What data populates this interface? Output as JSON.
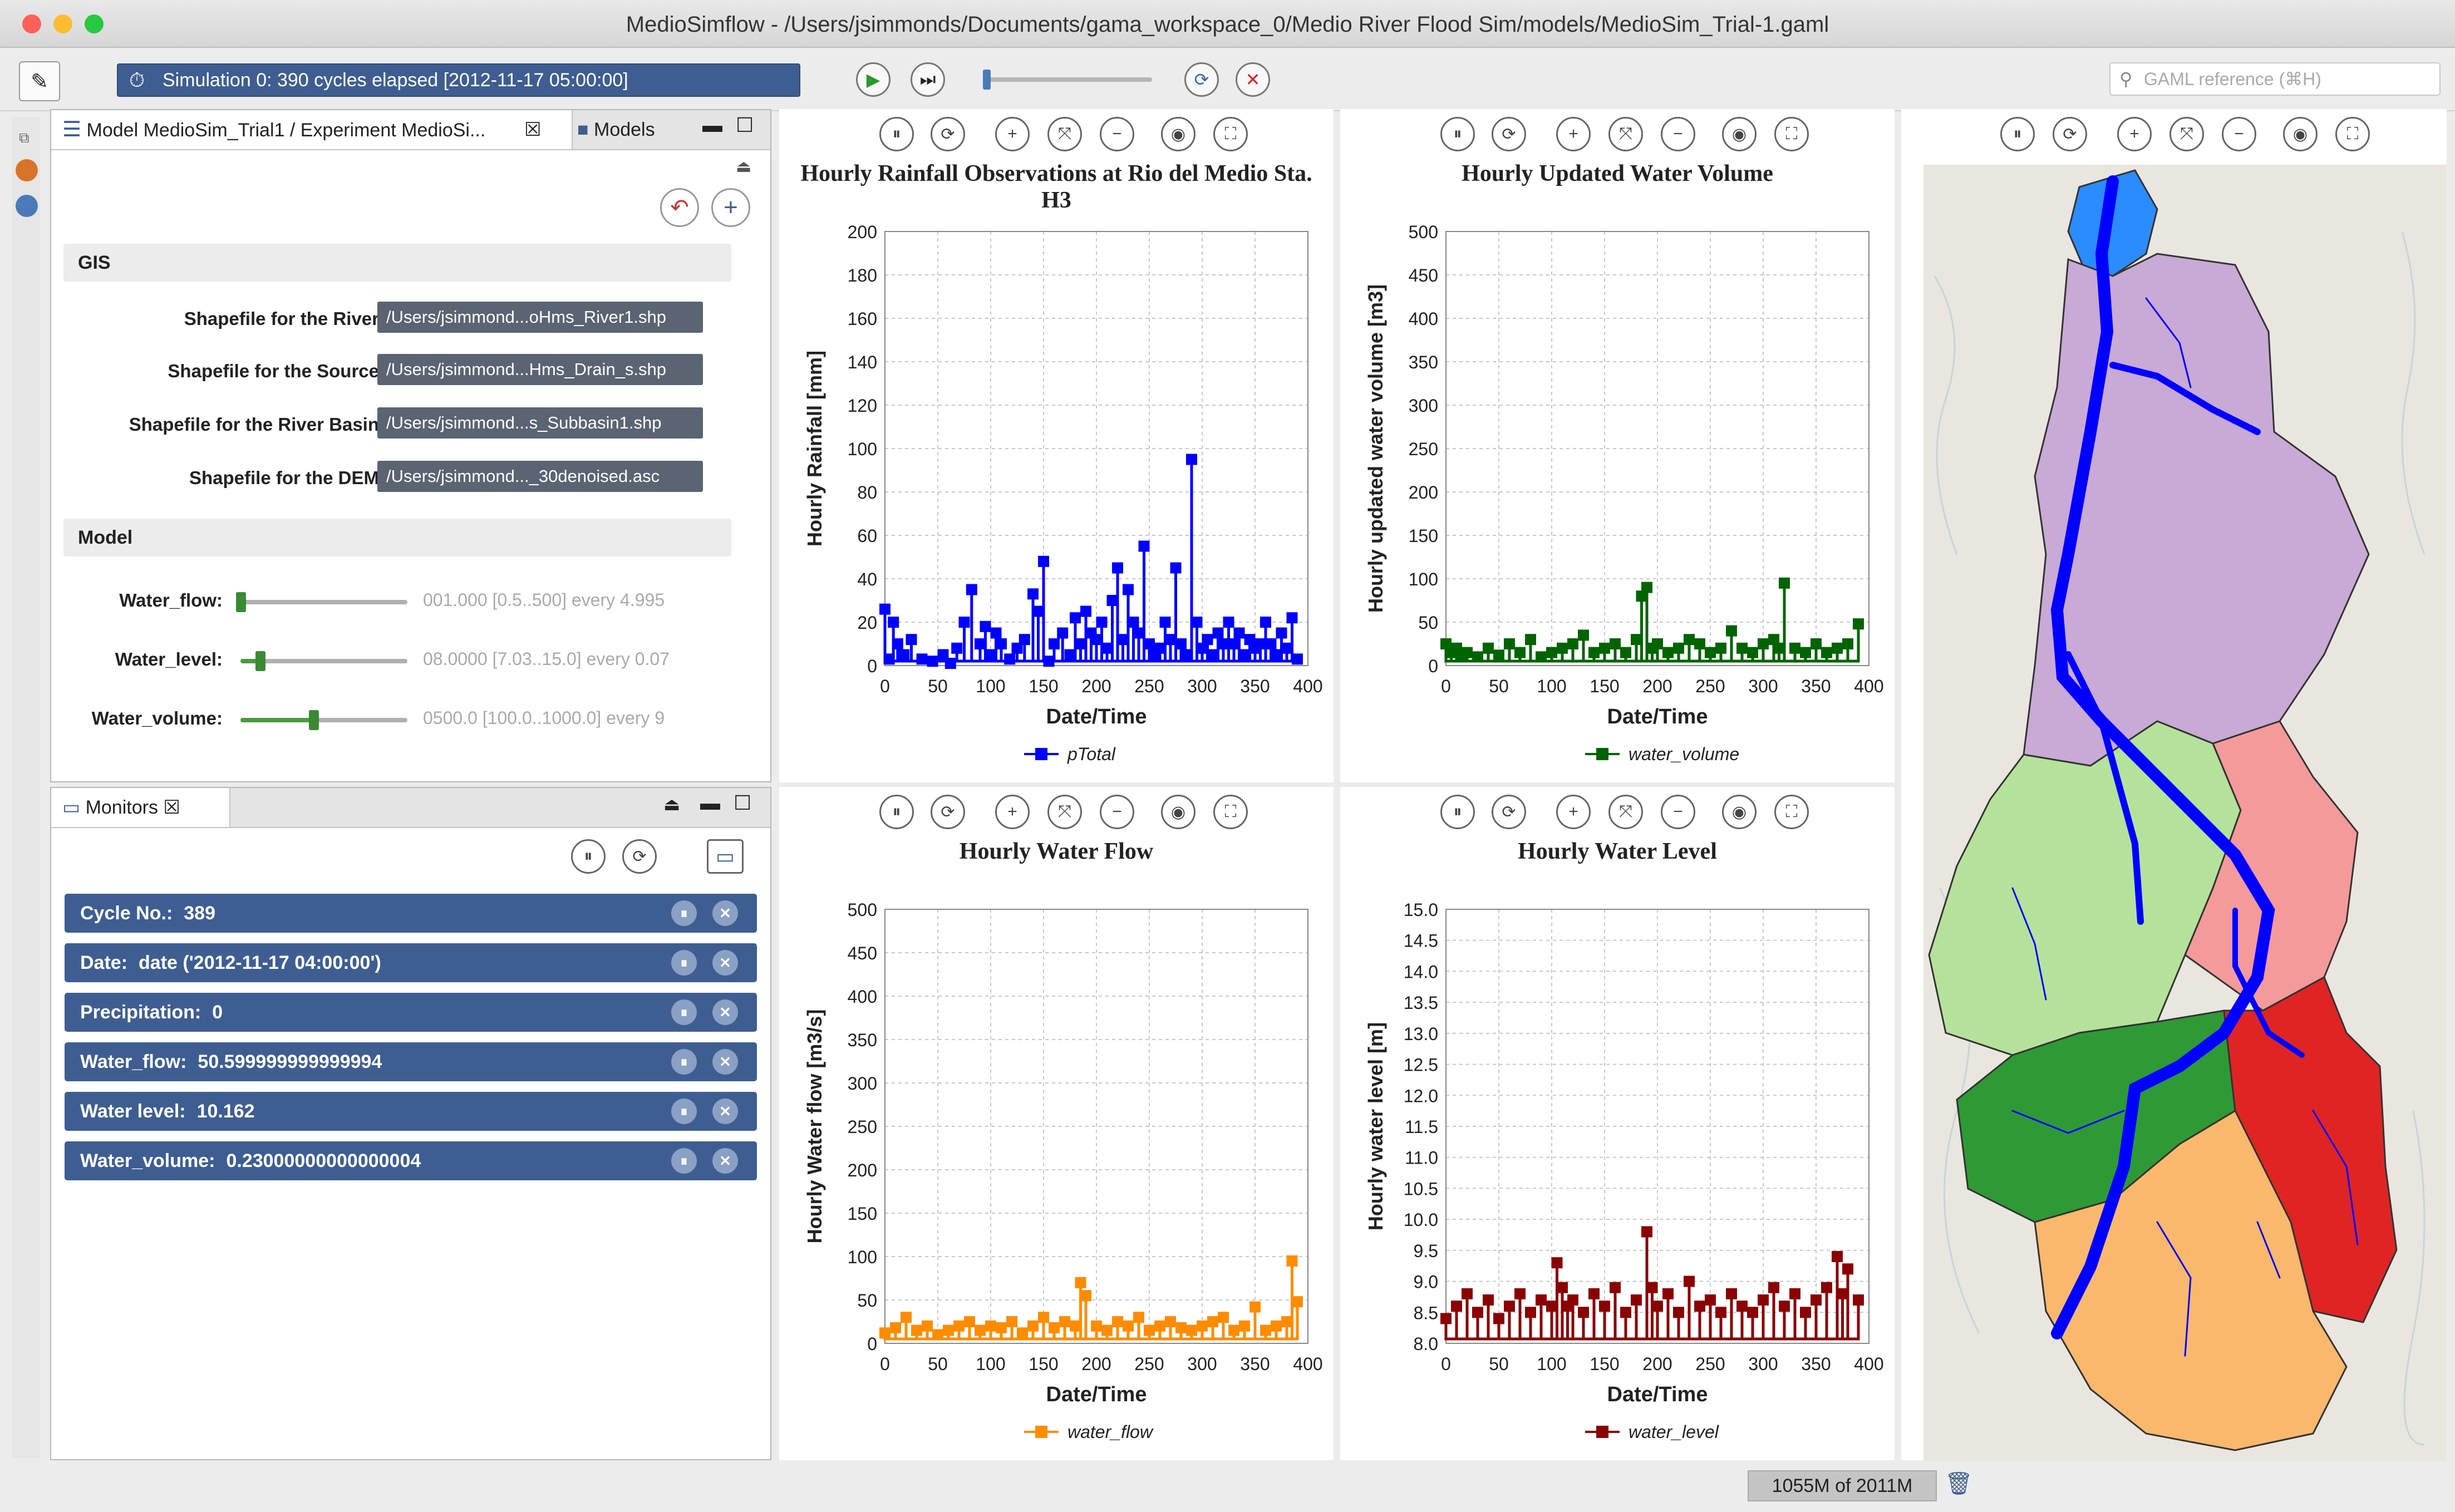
{
  "window": {
    "title": "MedioSimflow - /Users/jsimmonds/Documents/gama_workspace_0/Medio River Flood Sim/models/MedioSim_Trial-1.gaml"
  },
  "toolbar": {
    "sim_status": "Simulation 0: 390 cycles elapsed [2012-11-17 05:00:00]",
    "search_placeholder": "GAML reference (⌘H)"
  },
  "params_panel": {
    "tab_label": "Model MedioSim_Trial1 / Experiment MedioSi...",
    "models_tab": "Models",
    "gis_section": "GIS",
    "gis_params": [
      {
        "label": "Shapefile for the River:",
        "value": "/Users/jsimmond...oHms_River1.shp"
      },
      {
        "label": "Shapefile for the Source:",
        "value": "/Users/jsimmond...Hms_Drain_s.shp"
      },
      {
        "label": "Shapefile for the River Basin:",
        "value": "/Users/jsimmond...s_Subbasin1.shp"
      },
      {
        "label": "Shapefile for the DEM:",
        "value": "/Users/jsimmond..._30denoised.asc"
      }
    ],
    "model_section": "Model",
    "model_params": [
      {
        "label": "Water_flow:",
        "value": "001.000 [0.5..500] every 4.995",
        "fraction": 0.002
      },
      {
        "label": "Water_level:",
        "value": "08.0000 [7.03..15.0] every 0.07",
        "fraction": 0.12
      },
      {
        "label": "Water_volume:",
        "value": "0500.0 [100.0..1000.0] every 9",
        "fraction": 0.44
      }
    ]
  },
  "monitors_panel": {
    "tab_label": "Monitors",
    "items": [
      {
        "name": "Cycle No.:",
        "value": "389"
      },
      {
        "name": "Date:",
        "value": "date ('2012-11-17 04:00:00')"
      },
      {
        "name": "Precipitation:",
        "value": "0"
      },
      {
        "name": "Water_flow:",
        "value": "50.599999999999994"
      },
      {
        "name": "Water level:",
        "value": "10.162"
      },
      {
        "name": "Water_volume:",
        "value": "0.23000000000000004"
      }
    ]
  },
  "colors": {
    "accent": "#3e5e92",
    "rainfall": "#0000ff",
    "volume": "#006400",
    "flow": "#ff8c00",
    "level": "#8b0000"
  },
  "chart_data": [
    {
      "type": "line",
      "title": "Hourly Rainfall Observations at Rio del Medio Sta. H3",
      "xlabel": "Date/Time",
      "ylabel": "Hourly Rainfall [mm]",
      "xlim": [
        0,
        400
      ],
      "ylim": [
        0,
        200
      ],
      "xticks": [
        0,
        50,
        100,
        150,
        200,
        250,
        300,
        350,
        400
      ],
      "yticks": [
        0,
        20,
        40,
        60,
        80,
        100,
        120,
        140,
        160,
        180,
        200
      ],
      "legend": "bottom",
      "grid": true,
      "series": [
        {
          "name": "pTotal",
          "color": "#0000ff",
          "x": [
            0,
            4,
            8,
            12,
            18,
            25,
            35,
            45,
            55,
            62,
            68,
            75,
            82,
            90,
            95,
            100,
            105,
            110,
            118,
            125,
            132,
            140,
            145,
            150,
            155,
            160,
            168,
            175,
            180,
            185,
            190,
            195,
            200,
            205,
            210,
            215,
            220,
            225,
            230,
            235,
            240,
            245,
            250,
            255,
            260,
            265,
            270,
            275,
            280,
            285,
            290,
            295,
            300,
            305,
            310,
            315,
            320,
            325,
            330,
            335,
            340,
            345,
            350,
            355,
            360,
            365,
            370,
            375,
            380,
            385,
            390
          ],
          "y": [
            26,
            3,
            20,
            10,
            5,
            12,
            3,
            2,
            5,
            1,
            8,
            20,
            35,
            10,
            18,
            5,
            15,
            10,
            3,
            8,
            12,
            33,
            25,
            48,
            2,
            10,
            15,
            5,
            22,
            10,
            25,
            15,
            12,
            20,
            8,
            30,
            45,
            12,
            35,
            20,
            15,
            55,
            10,
            5,
            8,
            20,
            12,
            45,
            10,
            5,
            95,
            20,
            8,
            12,
            5,
            15,
            10,
            20,
            10,
            15,
            5,
            12,
            8,
            10,
            20,
            10,
            5,
            15,
            8,
            22,
            3
          ]
        }
      ]
    },
    {
      "type": "line",
      "title": "Hourly Updated Water Volume",
      "xlabel": "Date/Time",
      "ylabel": "Hourly updated water volume [m3]",
      "xlim": [
        0,
        400
      ],
      "ylim": [
        0,
        500
      ],
      "xticks": [
        0,
        50,
        100,
        150,
        200,
        250,
        300,
        350,
        400
      ],
      "yticks": [
        0,
        50,
        100,
        150,
        200,
        250,
        300,
        350,
        400,
        450,
        500
      ],
      "legend": "bottom",
      "grid": true,
      "series": [
        {
          "name": "water_volume",
          "color": "#006400",
          "x": [
            0,
            5,
            10,
            15,
            20,
            30,
            40,
            50,
            60,
            70,
            80,
            90,
            100,
            110,
            120,
            130,
            140,
            150,
            160,
            170,
            180,
            185,
            190,
            195,
            200,
            210,
            220,
            230,
            240,
            250,
            260,
            270,
            280,
            290,
            300,
            310,
            315,
            320,
            330,
            340,
            350,
            360,
            370,
            380,
            390
          ],
          "y": [
            25,
            15,
            20,
            10,
            15,
            10,
            20,
            12,
            25,
            15,
            30,
            10,
            15,
            20,
            25,
            35,
            15,
            20,
            25,
            15,
            30,
            80,
            90,
            20,
            25,
            15,
            20,
            30,
            25,
            15,
            20,
            40,
            20,
            15,
            25,
            30,
            20,
            95,
            20,
            15,
            25,
            15,
            20,
            25,
            48
          ]
        }
      ]
    },
    {
      "type": "line",
      "title": "Hourly Water Flow",
      "xlabel": "Date/Time",
      "ylabel": "Hourly Water flow [m3/s]",
      "xlim": [
        0,
        400
      ],
      "ylim": [
        0,
        500
      ],
      "xticks": [
        0,
        50,
        100,
        150,
        200,
        250,
        300,
        350,
        400
      ],
      "yticks": [
        0,
        50,
        100,
        150,
        200,
        250,
        300,
        350,
        400,
        450,
        500
      ],
      "legend": "bottom",
      "grid": true,
      "series": [
        {
          "name": "water_flow",
          "color": "#ff8c00",
          "x": [
            0,
            10,
            20,
            30,
            40,
            50,
            60,
            70,
            80,
            90,
            100,
            110,
            120,
            130,
            140,
            150,
            160,
            170,
            180,
            185,
            190,
            200,
            210,
            220,
            230,
            240,
            250,
            260,
            270,
            280,
            290,
            300,
            310,
            320,
            330,
            340,
            350,
            360,
            370,
            380,
            385,
            390
          ],
          "y": [
            12,
            18,
            30,
            15,
            20,
            10,
            15,
            20,
            25,
            15,
            20,
            18,
            25,
            12,
            20,
            30,
            18,
            25,
            20,
            70,
            55,
            20,
            15,
            25,
            20,
            30,
            15,
            20,
            25,
            18,
            15,
            20,
            25,
            30,
            15,
            20,
            42,
            15,
            20,
            25,
            95,
            48
          ]
        }
      ]
    },
    {
      "type": "line",
      "title": "Hourly Water Level",
      "xlabel": "Date/Time",
      "ylabel": "Hourly water level [m]",
      "xlim": [
        0,
        400
      ],
      "ylim": [
        8.0,
        15.0
      ],
      "xticks": [
        0,
        50,
        100,
        150,
        200,
        250,
        300,
        350,
        400
      ],
      "yticks": [
        8.0,
        8.5,
        9.0,
        9.5,
        10.0,
        10.5,
        11.0,
        11.5,
        12.0,
        12.5,
        13.0,
        13.5,
        14.0,
        14.5,
        15.0
      ],
      "legend": "bottom",
      "grid": true,
      "series": [
        {
          "name": "water_level",
          "color": "#8b0000",
          "x": [
            0,
            10,
            20,
            30,
            40,
            50,
            60,
            70,
            80,
            90,
            100,
            105,
            110,
            115,
            120,
            130,
            140,
            150,
            160,
            170,
            180,
            190,
            195,
            200,
            210,
            220,
            230,
            240,
            250,
            260,
            270,
            280,
            290,
            300,
            310,
            320,
            330,
            340,
            350,
            360,
            370,
            375,
            380,
            390
          ],
          "y": [
            8.4,
            8.6,
            8.8,
            8.5,
            8.7,
            8.4,
            8.6,
            8.8,
            8.5,
            8.7,
            8.6,
            9.3,
            8.9,
            8.6,
            8.7,
            8.5,
            8.8,
            8.6,
            8.9,
            8.5,
            8.7,
            9.8,
            8.9,
            8.6,
            8.8,
            8.5,
            9.0,
            8.6,
            8.7,
            8.5,
            8.8,
            8.6,
            8.5,
            8.7,
            8.9,
            8.6,
            8.8,
            8.5,
            8.7,
            8.9,
            9.4,
            8.8,
            9.2,
            8.7
          ]
        }
      ]
    }
  ],
  "status_bar": {
    "memory": "1055M of 2011M"
  }
}
